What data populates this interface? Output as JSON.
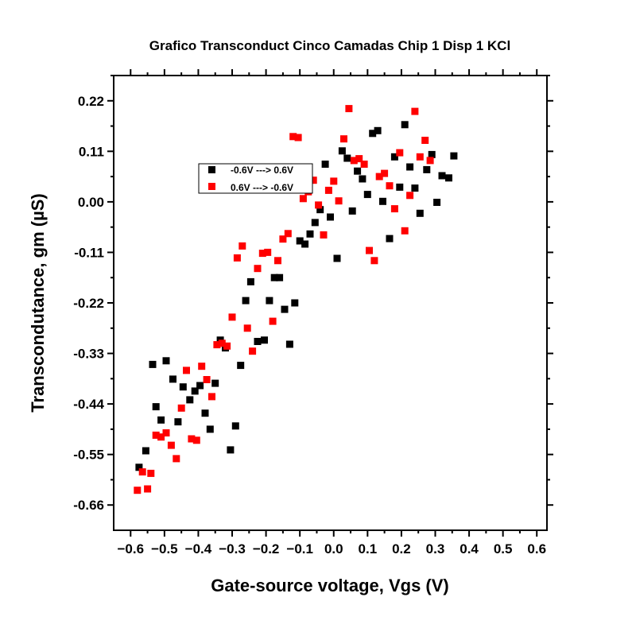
{
  "chart_data": {
    "type": "scatter",
    "title": "Grafico Transconduct Cinco Camadas Chip 1 Disp 1 KCl",
    "xlabel": "Gate-source voltage, Vgs (V)",
    "ylabel": "Transcondutance, gm (µS)",
    "xlim": [
      -0.65,
      0.63
    ],
    "ylim": [
      -0.715,
      0.275
    ],
    "xticks": [
      "−0.6",
      "−0.5",
      "−0.4",
      "−0.3",
      "−0.2",
      "−0.1",
      "0.0",
      "0.1",
      "0.2",
      "0.3",
      "0.4",
      "0.5",
      "0.6"
    ],
    "xtick_values": [
      -0.6,
      -0.5,
      -0.4,
      -0.3,
      -0.2,
      -0.1,
      0.0,
      0.1,
      0.2,
      0.3,
      0.4,
      0.5,
      0.6
    ],
    "yticks": [
      "0.22",
      "0.11",
      "0.00",
      "-0.11",
      "-0.22",
      "-0.33",
      "-0.44",
      "-0.55",
      "-0.66"
    ],
    "ytick_values": [
      0.22,
      0.11,
      0.0,
      -0.11,
      -0.22,
      -0.33,
      -0.44,
      -0.55,
      -0.66
    ],
    "legend_position": "upper-left",
    "grid": false,
    "series": [
      {
        "name": "-0.6V ---> 0.6V",
        "color": "#000000",
        "points": [
          [
            -0.575,
            -0.578
          ],
          [
            -0.555,
            -0.542
          ],
          [
            -0.535,
            -0.354
          ],
          [
            -0.525,
            -0.446
          ],
          [
            -0.51,
            -0.475
          ],
          [
            -0.495,
            -0.346
          ],
          [
            -0.475,
            -0.386
          ],
          [
            -0.46,
            -0.479
          ],
          [
            -0.445,
            -0.403
          ],
          [
            -0.425,
            -0.431
          ],
          [
            -0.41,
            -0.412
          ],
          [
            -0.395,
            -0.4
          ],
          [
            -0.38,
            -0.46
          ],
          [
            -0.365,
            -0.495
          ],
          [
            -0.35,
            -0.395
          ],
          [
            -0.335,
            -0.301
          ],
          [
            -0.32,
            -0.318
          ],
          [
            -0.305,
            -0.54
          ],
          [
            -0.29,
            -0.488
          ],
          [
            -0.275,
            -0.356
          ],
          [
            -0.26,
            -0.215
          ],
          [
            -0.245,
            -0.174
          ],
          [
            -0.225,
            -0.304
          ],
          [
            -0.205,
            -0.301
          ],
          [
            -0.19,
            -0.215
          ],
          [
            -0.175,
            -0.165
          ],
          [
            -0.16,
            -0.165
          ],
          [
            -0.145,
            -0.234
          ],
          [
            -0.13,
            -0.31
          ],
          [
            -0.115,
            -0.22
          ],
          [
            -0.1,
            -0.085
          ],
          [
            -0.085,
            -0.092
          ],
          [
            -0.07,
            -0.07
          ],
          [
            -0.055,
            -0.045
          ],
          [
            -0.04,
            -0.017
          ],
          [
            -0.025,
            0.082
          ],
          [
            -0.01,
            -0.033
          ],
          [
            0.01,
            -0.123
          ],
          [
            0.025,
            0.111
          ],
          [
            0.04,
            0.095
          ],
          [
            0.055,
            -0.02
          ],
          [
            0.07,
            0.067
          ],
          [
            0.085,
            0.05
          ],
          [
            0.1,
            0.016
          ],
          [
            0.115,
            0.149
          ],
          [
            0.13,
            0.155
          ],
          [
            0.145,
            0.001
          ],
          [
            0.165,
            -0.08
          ],
          [
            0.18,
            0.098
          ],
          [
            0.195,
            0.032
          ],
          [
            0.21,
            0.168
          ],
          [
            0.225,
            0.076
          ],
          [
            0.24,
            0.03
          ],
          [
            0.255,
            -0.025
          ],
          [
            0.275,
            0.07
          ],
          [
            0.29,
            0.103
          ],
          [
            0.305,
            -0.001
          ],
          [
            0.32,
            0.057
          ],
          [
            0.34,
            0.052
          ],
          [
            0.355,
            0.1
          ]
        ]
      },
      {
        "name": "0.6V ---> -0.6V",
        "color": "#ff0000",
        "points": [
          [
            -0.58,
            -0.628
          ],
          [
            -0.565,
            -0.588
          ],
          [
            -0.55,
            -0.625
          ],
          [
            -0.54,
            -0.591
          ],
          [
            -0.525,
            -0.508
          ],
          [
            -0.51,
            -0.512
          ],
          [
            -0.495,
            -0.503
          ],
          [
            -0.48,
            -0.53
          ],
          [
            -0.465,
            -0.559
          ],
          [
            -0.45,
            -0.449
          ],
          [
            -0.435,
            -0.367
          ],
          [
            -0.42,
            -0.516
          ],
          [
            -0.405,
            -0.519
          ],
          [
            -0.39,
            -0.358
          ],
          [
            -0.375,
            -0.387
          ],
          [
            -0.36,
            -0.424
          ],
          [
            -0.345,
            -0.311
          ],
          [
            -0.33,
            -0.308
          ],
          [
            -0.315,
            -0.314
          ],
          [
            -0.3,
            -0.251
          ],
          [
            -0.285,
            -0.122
          ],
          [
            -0.27,
            -0.096
          ],
          [
            -0.255,
            -0.275
          ],
          [
            -0.24,
            -0.325
          ],
          [
            -0.225,
            -0.145
          ],
          [
            -0.21,
            -0.112
          ],
          [
            -0.195,
            -0.11
          ],
          [
            -0.18,
            -0.26
          ],
          [
            -0.165,
            -0.128
          ],
          [
            -0.15,
            -0.081
          ],
          [
            -0.135,
            -0.069
          ],
          [
            -0.12,
            0.142
          ],
          [
            -0.105,
            0.14
          ],
          [
            -0.09,
            0.007
          ],
          [
            -0.075,
            0.022
          ],
          [
            -0.06,
            0.047
          ],
          [
            -0.045,
            -0.007
          ],
          [
            -0.03,
            -0.072
          ],
          [
            -0.015,
            0.025
          ],
          [
            0.0,
            0.045
          ],
          [
            0.015,
            0.002
          ],
          [
            0.03,
            0.137
          ],
          [
            0.045,
            0.203
          ],
          [
            0.06,
            0.09
          ],
          [
            0.075,
            0.094
          ],
          [
            0.09,
            0.082
          ],
          [
            0.105,
            -0.106
          ],
          [
            0.12,
            -0.128
          ],
          [
            0.135,
            0.055
          ],
          [
            0.15,
            0.062
          ],
          [
            0.165,
            0.035
          ],
          [
            0.18,
            -0.015
          ],
          [
            0.195,
            0.107
          ],
          [
            0.21,
            -0.063
          ],
          [
            0.225,
            0.014
          ],
          [
            0.24,
            0.197
          ],
          [
            0.255,
            0.098
          ],
          [
            0.27,
            0.134
          ],
          [
            0.285,
            0.09
          ]
        ]
      }
    ]
  }
}
